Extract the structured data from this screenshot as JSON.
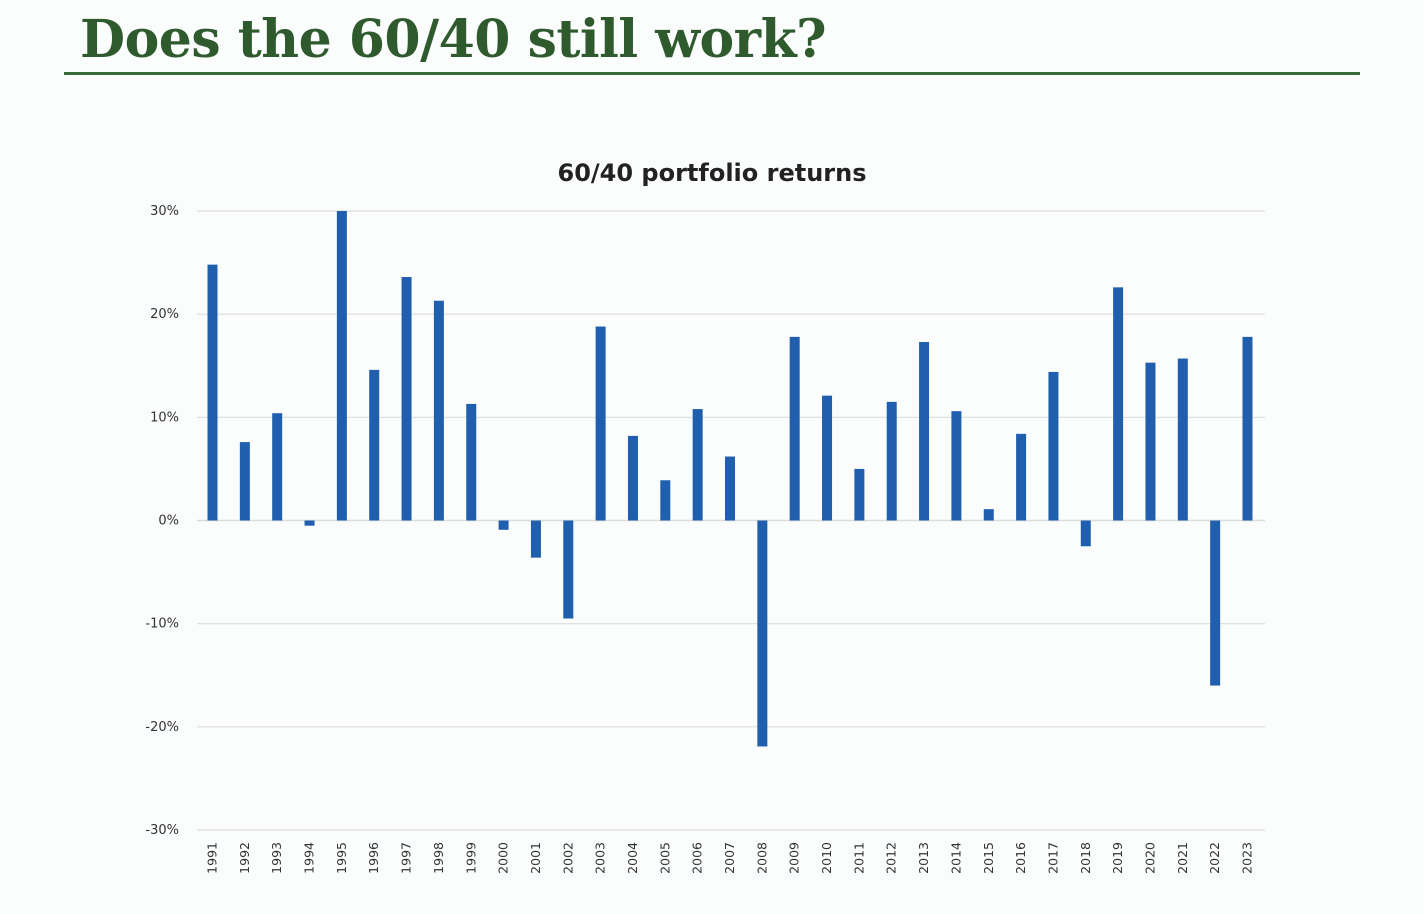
{
  "slide": {
    "title": "Does the 60/40 still work?"
  },
  "colors": {
    "title": "#2e5a2e",
    "rule": "#3b6b3b",
    "bar": "#1f5fae",
    "grid": "#dcdcdc"
  },
  "chart_data": {
    "type": "bar",
    "title": "60/40 portfolio returns",
    "xlabel": "",
    "ylabel": "",
    "ylim": [
      -30,
      30
    ],
    "yticks": [
      30,
      20,
      10,
      0,
      -10,
      -20,
      -30
    ],
    "ytick_labels": [
      "30%",
      "20%",
      "10%",
      "0%",
      "-10%",
      "-20%",
      "-30%"
    ],
    "grid": true,
    "legend": "none",
    "categories": [
      "1991",
      "1992",
      "1993",
      "1994",
      "1995",
      "1996",
      "1997",
      "1998",
      "1999",
      "2000",
      "2001",
      "2002",
      "2003",
      "2004",
      "2005",
      "2006",
      "2007",
      "2008",
      "2009",
      "2010",
      "2011",
      "2012",
      "2013",
      "2014",
      "2015",
      "2016",
      "2017",
      "2018",
      "2019",
      "2020",
      "2021",
      "2022",
      "2023"
    ],
    "values": [
      24.8,
      7.6,
      10.4,
      -0.5,
      30.0,
      14.6,
      23.6,
      21.3,
      11.3,
      -0.9,
      -3.6,
      -9.5,
      18.8,
      8.2,
      3.9,
      10.8,
      6.2,
      -21.9,
      17.8,
      12.1,
      5.0,
      11.5,
      17.3,
      10.6,
      1.1,
      8.4,
      14.4,
      -2.5,
      22.6,
      15.3,
      15.7,
      -16.0,
      17.8
    ]
  }
}
